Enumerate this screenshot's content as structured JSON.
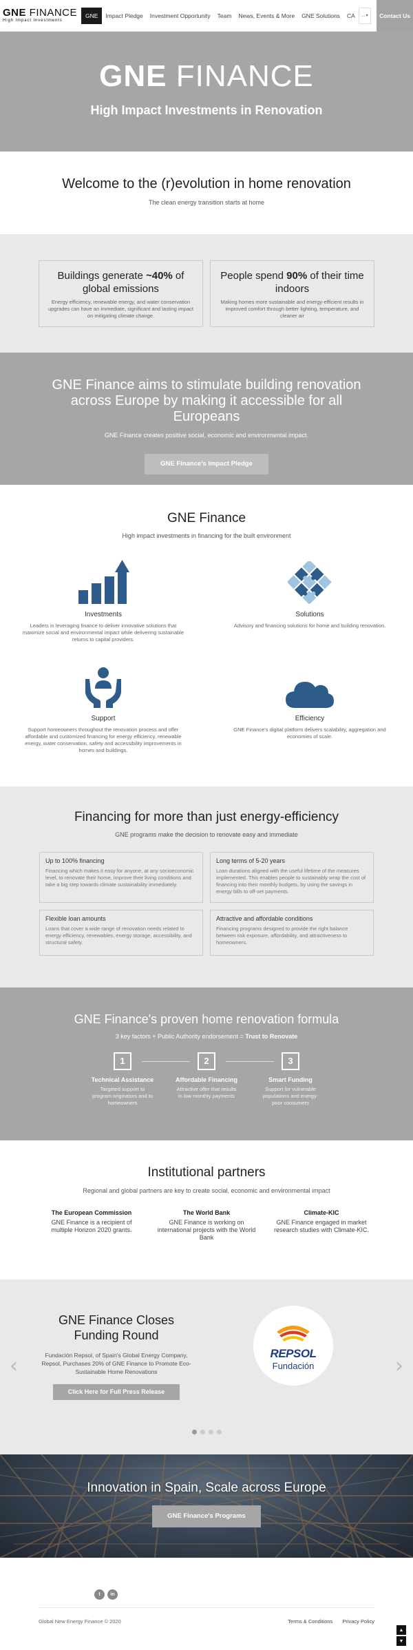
{
  "nav": {
    "logo_bold": "GNE",
    "logo_light": " FINANCE",
    "logo_sub": "High Impact Investments",
    "items": [
      "GNE",
      "Impact Pledge",
      "Investment Opportunity",
      "Team",
      "News, Events & More",
      "GNE Solutions",
      "CA"
    ],
    "more": "...",
    "contact": "Contact Us"
  },
  "hero": {
    "title_bold": "GNE",
    "title_light": " FINANCE",
    "subtitle": "High Impact Investments in Renovation"
  },
  "welcome": {
    "title": "Welcome to the (r)evolution in home renovation",
    "subtitle": "The clean energy transition starts at home"
  },
  "stats": [
    {
      "title_pre": "Buildings generate ",
      "title_bold": "~40%",
      "title_post": " of global emissions",
      "desc": "Energy efficiency, renewable energy, and water conservation upgrades can have an immediate, significant and lasting impact on mitigating climate change."
    },
    {
      "title_pre": "People spend ",
      "title_bold": "90%",
      "title_post": " of their time indoors",
      "desc": "Making homes more sustainable and energy-efficient results in improved comfort through better lighting, temperature, and cleaner air"
    }
  ],
  "mission": {
    "title": "GNE Finance aims to stimulate building renovation across Europe by making it accessible for all Europeans",
    "subtitle": "GNE Finance creates positive social, economic and environmental impact.",
    "button": "GNE Finance's Impact Pledge"
  },
  "services": {
    "title": "GNE Finance",
    "subtitle": "High impact investments in financing for the built environment",
    "items": [
      {
        "title": "Investments",
        "desc": "Leaders in leveraging finance to deliver innovative solutions that maximize social and environmental impact while delivering sustainable returns to capital providers.",
        "icon": "bar-chart-icon"
      },
      {
        "title": "Solutions",
        "desc": "Advisory and financing solutions for home and building renovation.",
        "icon": "puzzle-icon"
      },
      {
        "title": "Support",
        "desc": "Support homeowners throughout the renovation process and offer affordable and customized financing for energy efficiency, renewable energy, water conservation, safety and accessibility improvements in homes and buildings.",
        "icon": "hands-person-icon"
      },
      {
        "title": "Efficiency",
        "desc": "GNE Finance's digital platform delivers scalability, aggregation and economies of scale.",
        "icon": "cloud-icon"
      }
    ],
    "colors": {
      "icon": "#2d5b8a",
      "puzzle_light": "#9ec4e0"
    }
  },
  "financing": {
    "title": "Financing for more than just energy-efficiency",
    "subtitle": "GNE programs make the decision to renovate easy and immediate",
    "cards": [
      {
        "title": "Up to 100% financing",
        "desc": "Financing which makes it easy for anyone, at any socioeconomic level, to renovate their home, improve their living conditions and take a big step towards climate sustainability immediately."
      },
      {
        "title": "Long terms of 5-20 years",
        "desc": "Loan durations aligned with the useful lifetime of the measures implemented. This enables people to sustainably wrap the cost of financing into their monthly budgets, by using the savings in energy bills to off-set payments."
      },
      {
        "title": "Flexible loan amounts",
        "desc": "Loans that cover a wide range of renovation needs related to energy efficiency, renewables, energy storage, accessibility, and structural safety."
      },
      {
        "title": "Attractive and affordable conditions",
        "desc": "Financing programs designed to provide the right balance between risk exposure, affordability, and attractiveness to homeowners."
      }
    ]
  },
  "formula": {
    "title": "GNE Finance's proven home renovation formula",
    "sub_pre": "3 key factors + Public Authority endorsement = ",
    "sub_bold": "Trust to Renovate",
    "steps": [
      {
        "num": "1",
        "title": "Technical Assistance",
        "desc": "Targeted support to program originators and to homeowners"
      },
      {
        "num": "2",
        "title": "Affordable Financing",
        "desc": "Attractive offer that results in low monthly payments"
      },
      {
        "num": "3",
        "title": "Smart Funding",
        "desc": "Support for vulnerable populations and energy-poor consumers"
      }
    ]
  },
  "partners": {
    "title": "Institutional partners",
    "subtitle": "Regional and global partners are key to create social, economic and environmental impact",
    "items": [
      {
        "name": "The European Commission",
        "desc": "GNE Finance is a recipient of multiple Horizon 2020 grants."
      },
      {
        "name": "The World Bank",
        "desc": "GNE Finance is working on international projects with the World Bank"
      },
      {
        "name": "Climate-KIC",
        "desc": "GNE Finance engaged in market research studies with Climate-KIC."
      }
    ]
  },
  "slider": {
    "title": "GNE Finance Closes Funding Round",
    "desc": "Fundación Repsol, of Spain's Global Energy Company, Repsol, Purchases 20% of GNE Finance to Promote Eco-Sustainable Home Renovations",
    "button": "Click Here for Full Press Release",
    "logo_name": "REPSOL",
    "logo_sub": "Fundación",
    "prev": "‹",
    "next": "›",
    "slide_count": 4,
    "active_slide": 1
  },
  "innovation": {
    "title": "Innovation in Spain, Scale across Europe",
    "button": "GNE Finance's Programs"
  },
  "footer": {
    "social": [
      "t",
      "in"
    ],
    "copyright": "Global New Energy Finance © 2020",
    "links": [
      "Terms & Conditions",
      "Privacy Policy"
    ],
    "top": "▲",
    "bottom": "▼"
  }
}
